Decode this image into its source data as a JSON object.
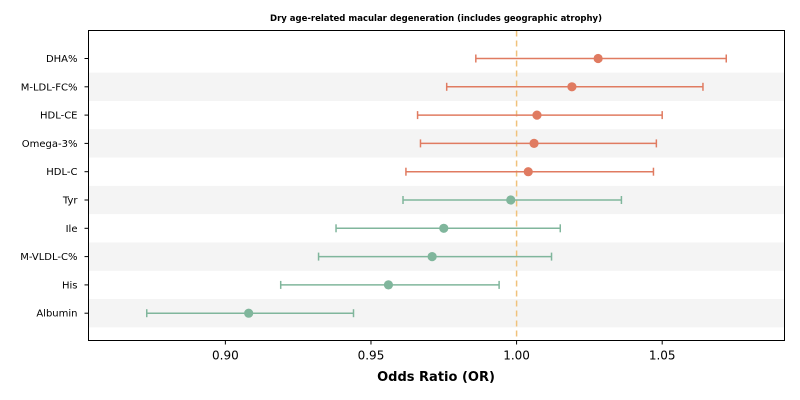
{
  "chart_data": {
    "type": "forest",
    "title": "Dry age-related macular degeneration (includes geographic atrophy)",
    "xlabel": "Odds Ratio (OR)",
    "xlim": [
      0.853,
      1.092
    ],
    "xticks": [
      "0.90",
      "0.95",
      "1.00",
      "1.05"
    ],
    "xtick_values": [
      0.9,
      0.95,
      1.0,
      1.05
    ],
    "reference_line": 1.0,
    "reference_color": "#f0c27b",
    "colors": {
      "risk": "#e07b61",
      "protective": "#80b69c",
      "stripe": "#f4f4f4"
    },
    "grid": false,
    "rows": [
      {
        "label": "DHA%",
        "or": 1.028,
        "lo": 0.986,
        "hi": 1.072,
        "group": "risk"
      },
      {
        "label": "M-LDL-FC%",
        "or": 1.019,
        "lo": 0.976,
        "hi": 1.064,
        "group": "risk"
      },
      {
        "label": "HDL-CE",
        "or": 1.007,
        "lo": 0.966,
        "hi": 1.05,
        "group": "risk"
      },
      {
        "label": "Omega-3%",
        "or": 1.006,
        "lo": 0.967,
        "hi": 1.048,
        "group": "risk"
      },
      {
        "label": "HDL-C",
        "or": 1.004,
        "lo": 0.962,
        "hi": 1.047,
        "group": "risk"
      },
      {
        "label": "Tyr",
        "or": 0.998,
        "lo": 0.961,
        "hi": 1.036,
        "group": "protective"
      },
      {
        "label": "Ile",
        "or": 0.975,
        "lo": 0.938,
        "hi": 1.015,
        "group": "protective"
      },
      {
        "label": "M-VLDL-C%",
        "or": 0.971,
        "lo": 0.932,
        "hi": 1.012,
        "group": "protective"
      },
      {
        "label": "His",
        "or": 0.956,
        "lo": 0.919,
        "hi": 0.994,
        "group": "protective"
      },
      {
        "label": "Albumin",
        "or": 0.908,
        "lo": 0.873,
        "hi": 0.944,
        "group": "protective"
      }
    ]
  }
}
